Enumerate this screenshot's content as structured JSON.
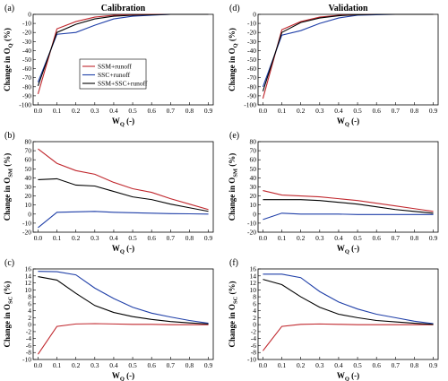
{
  "chart_data": [
    {
      "panel": "(a)",
      "title": "Calibration",
      "type": "line",
      "ylabel_main": "Change in O",
      "ylabel_sub": "Q",
      "ylabel_suffix": " (%)",
      "xlabel_main": "W",
      "xlabel_sub": "Q",
      "xlabel_suffix": " (-)",
      "x": [
        0.0,
        0.1,
        0.2,
        0.3,
        0.4,
        0.5,
        0.6,
        0.7,
        0.8,
        0.9
      ],
      "xticks": [
        "0.0",
        "0.1",
        "0.2",
        "0.3",
        "0.4",
        "0.5",
        "0.6",
        "0.7",
        "0.8",
        "0.9"
      ],
      "yticks": [
        -100,
        -90,
        -80,
        -70,
        -60,
        -50,
        -40,
        -30,
        -20,
        -10,
        0
      ],
      "ylim": [
        -100,
        0
      ],
      "legend": "top-left",
      "series": [
        {
          "name": "SSM+runoff",
          "color": "#c0272d",
          "values": [
            -88,
            -16,
            -8,
            -3,
            -1,
            -0.5,
            -0.2,
            0,
            0,
            0
          ]
        },
        {
          "name": "SSC+runoff",
          "color": "#1f3fa8",
          "values": [
            -75,
            -22,
            -20,
            -12,
            -5,
            -2,
            -1,
            0,
            0,
            0
          ]
        },
        {
          "name": "SSM+SSC+runoff",
          "color": "#000000",
          "values": [
            -79,
            -20,
            -11,
            -5,
            -2,
            -1,
            -0.5,
            0,
            0,
            0
          ]
        }
      ]
    },
    {
      "panel": "(d)",
      "title": "Validation",
      "type": "line",
      "ylabel_main": "Change in O",
      "ylabel_sub": "Q",
      "ylabel_suffix": " (%)",
      "xlabel_main": "W",
      "xlabel_sub": "Q",
      "xlabel_suffix": " (-)",
      "x": [
        0.0,
        0.1,
        0.2,
        0.3,
        0.4,
        0.5,
        0.6,
        0.7,
        0.8,
        0.9
      ],
      "xticks": [
        "0.0",
        "0.1",
        "0.2",
        "0.3",
        "0.4",
        "0.5",
        "0.6",
        "0.7",
        "0.8",
        "0.9"
      ],
      "yticks": [
        -100,
        -90,
        -80,
        -70,
        -60,
        -50,
        -40,
        -30,
        -20,
        -10,
        0
      ],
      "ylim": [
        -100,
        0
      ],
      "series": [
        {
          "name": "SSM+runoff",
          "color": "#c0272d",
          "values": [
            -93,
            -17,
            -8,
            -3,
            -1,
            -0.5,
            0,
            0,
            0,
            0
          ]
        },
        {
          "name": "SSC+runoff",
          "color": "#1f3fa8",
          "values": [
            -80,
            -23,
            -18,
            -10,
            -4,
            -1,
            -0.5,
            0,
            0,
            0
          ]
        },
        {
          "name": "SSM+SSC+runoff",
          "color": "#000000",
          "values": [
            -85,
            -20,
            -9,
            -4,
            -1.5,
            -0.5,
            0,
            0,
            0,
            0
          ]
        }
      ]
    },
    {
      "panel": "(b)",
      "title": "",
      "type": "line",
      "ylabel_main": "Change in O",
      "ylabel_sub": "SM",
      "ylabel_suffix": " (%)",
      "xlabel_main": "W",
      "xlabel_sub": "Q",
      "xlabel_suffix": " (-)",
      "x": [
        0.0,
        0.1,
        0.2,
        0.3,
        0.4,
        0.5,
        0.6,
        0.7,
        0.8,
        0.9
      ],
      "xticks": [
        "0.0",
        "0.1",
        "0.2",
        "0.3",
        "0.4",
        "0.5",
        "0.6",
        "0.7",
        "0.8",
        "0.9"
      ],
      "yticks": [
        -20,
        -10,
        0,
        10,
        20,
        30,
        40,
        50,
        60,
        70,
        80
      ],
      "ylim": [
        -20,
        80
      ],
      "series": [
        {
          "name": "SSM+runoff",
          "color": "#c0272d",
          "values": [
            72,
            56,
            48,
            44,
            35,
            28,
            24,
            17,
            11,
            5
          ]
        },
        {
          "name": "SSC+runoff",
          "color": "#1f3fa8",
          "values": [
            -15,
            2,
            2.5,
            3,
            2,
            1.5,
            1,
            0.5,
            0.3,
            0
          ]
        },
        {
          "name": "SSM+SSC+runoff",
          "color": "#000000",
          "values": [
            38,
            39,
            32,
            31,
            25,
            19,
            16,
            11,
            7,
            3
          ]
        }
      ]
    },
    {
      "panel": "(e)",
      "title": "",
      "type": "line",
      "ylabel_main": "Change in O",
      "ylabel_sub": "SM",
      "ylabel_suffix": " (%)",
      "xlabel_main": "W",
      "xlabel_sub": "Q",
      "xlabel_suffix": " (-)",
      "x": [
        0.0,
        0.1,
        0.2,
        0.3,
        0.4,
        0.5,
        0.6,
        0.7,
        0.8,
        0.9
      ],
      "xticks": [
        "0.0",
        "0.1",
        "0.2",
        "0.3",
        "0.4",
        "0.5",
        "0.6",
        "0.7",
        "0.8",
        "0.9"
      ],
      "yticks": [
        -20,
        -10,
        0,
        10,
        20,
        30,
        40,
        50,
        60,
        70,
        80
      ],
      "ylim": [
        -20,
        80
      ],
      "series": [
        {
          "name": "SSM+runoff",
          "color": "#c0272d",
          "values": [
            26,
            21,
            20,
            19,
            17,
            15,
            12,
            9,
            6,
            3
          ]
        },
        {
          "name": "SSC+runoff",
          "color": "#1f3fa8",
          "values": [
            -6,
            1,
            0,
            0,
            0,
            -0.5,
            -0.5,
            -0.5,
            -0.5,
            -0.5
          ]
        },
        {
          "name": "SSM+SSC+runoff",
          "color": "#000000",
          "values": [
            16,
            16,
            16,
            15,
            13,
            11,
            8,
            5,
            3,
            1
          ]
        }
      ]
    },
    {
      "panel": "(c)",
      "title": "",
      "type": "line",
      "ylabel_main": "Change in O",
      "ylabel_sub": "SC",
      "ylabel_suffix": " (%)",
      "xlabel_main": "W",
      "xlabel_sub": "Q",
      "xlabel_suffix": " (-)",
      "x": [
        0.0,
        0.1,
        0.2,
        0.3,
        0.4,
        0.5,
        0.6,
        0.7,
        0.8,
        0.9
      ],
      "xticks": [
        "0.0",
        "0.1",
        "0.2",
        "0.3",
        "0.4",
        "0.5",
        "0.6",
        "0.7",
        "0.8",
        "0.9"
      ],
      "yticks": [
        -10,
        -8,
        -6,
        -4,
        -2,
        0,
        2,
        4,
        6,
        8,
        10,
        12,
        14,
        16
      ],
      "ylim": [
        -10,
        16
      ],
      "series": [
        {
          "name": "SSM+runoff",
          "color": "#c0272d",
          "values": [
            -8.5,
            -0.5,
            0.2,
            0.3,
            0.2,
            0.1,
            0.1,
            0,
            0,
            0
          ]
        },
        {
          "name": "SSC+runoff",
          "color": "#1f3fa8",
          "values": [
            15.3,
            15.2,
            14.3,
            10.5,
            7.5,
            5,
            3.3,
            2.2,
            1.2,
            0.4
          ]
        },
        {
          "name": "SSM+SSC+runoff",
          "color": "#000000",
          "values": [
            13.8,
            12.8,
            9,
            5.5,
            3.5,
            2.3,
            1.5,
            0.9,
            0.5,
            0.2
          ]
        }
      ]
    },
    {
      "panel": "(f)",
      "title": "",
      "type": "line",
      "ylabel_main": "Change in O",
      "ylabel_sub": "SC",
      "ylabel_suffix": " (%)",
      "xlabel_main": "W",
      "xlabel_sub": "Q",
      "xlabel_suffix": " (-)",
      "x": [
        0.0,
        0.1,
        0.2,
        0.3,
        0.4,
        0.5,
        0.6,
        0.7,
        0.8,
        0.9
      ],
      "xticks": [
        "0.0",
        "0.1",
        "0.2",
        "0.3",
        "0.4",
        "0.5",
        "0.6",
        "0.7",
        "0.8",
        "0.9"
      ],
      "yticks": [
        -10,
        -8,
        -6,
        -4,
        -2,
        0,
        2,
        4,
        6,
        8,
        10,
        12,
        14,
        16
      ],
      "ylim": [
        -10,
        16
      ],
      "series": [
        {
          "name": "SSM+runoff",
          "color": "#c0272d",
          "values": [
            -7.5,
            -0.5,
            0.1,
            0.2,
            0.1,
            0,
            0,
            0,
            0,
            0
          ]
        },
        {
          "name": "SSC+runoff",
          "color": "#1f3fa8",
          "values": [
            14.5,
            14.5,
            13.5,
            9.5,
            6.5,
            4.5,
            3,
            2,
            1,
            0.3
          ]
        },
        {
          "name": "SSM+SSC+runoff",
          "color": "#000000",
          "values": [
            13,
            11.5,
            8,
            5,
            3,
            2,
            1.2,
            0.8,
            0.4,
            0.1
          ]
        }
      ]
    }
  ]
}
